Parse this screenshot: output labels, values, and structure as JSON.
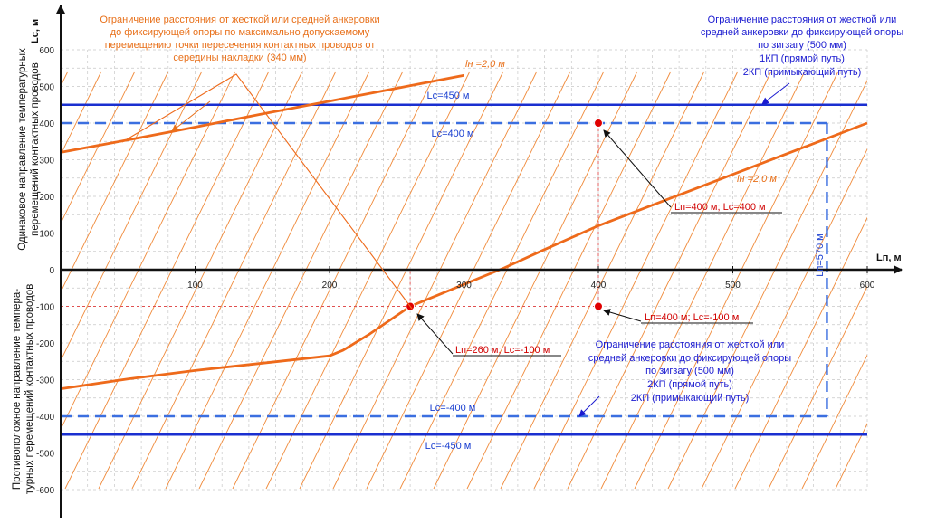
{
  "chart_data": {
    "type": "line",
    "title": "",
    "xlabel": "Lп, м",
    "ylabel": "Lс, м",
    "xlim": [
      0,
      600
    ],
    "ylim": [
      -600,
      600
    ],
    "x_ticks": [
      0,
      100,
      200,
      300,
      400,
      500,
      600
    ],
    "y_ticks": [
      -600,
      -500,
      -400,
      -300,
      -200,
      -100,
      0,
      100,
      200,
      300,
      400,
      500,
      600
    ],
    "x_tick_labels": [
      "0",
      "100",
      "200",
      "300",
      "400",
      "500",
      "600"
    ],
    "y_tick_labels": [
      "-600",
      "-500",
      "-400",
      "-300",
      "-200",
      "-100",
      "0",
      "100",
      "200",
      "300",
      "400",
      "500",
      "600"
    ],
    "grid": true,
    "side_titles": {
      "upper": [
        "Одинаковое направление температурных",
        "перемещений контактных проводов"
      ],
      "lower": [
        "Противоположное направление темпера-",
        "турных перемещений контактных проводов"
      ]
    },
    "series": [
      {
        "name": "lh = 2,0 м",
        "label_text": "lн =2,0 м",
        "color": "#ee6a1b",
        "x": [
          0,
          50,
          100,
          150,
          200,
          250,
          300
        ],
        "y": [
          320,
          354,
          389,
          425,
          460,
          495,
          530
        ]
      },
      {
        "name": "lh = 2,0 м (lower)",
        "label_text": "lн =2,0 м",
        "color": "#ee6a1b",
        "x": [
          0,
          50,
          100,
          150,
          200,
          210,
          230,
          260,
          280,
          300,
          330,
          360,
          400,
          450,
          500,
          550,
          600
        ],
        "y": [
          -325,
          -298,
          -275,
          -255,
          -235,
          -220,
          -175,
          -100,
          -70,
          -40,
          5,
          55,
          120,
          190,
          260,
          330,
          400
        ]
      }
    ],
    "reference_lines": [
      {
        "label": "Lс=450 м",
        "y": 450,
        "style": "solid",
        "color": "#1a2fd0"
      },
      {
        "label": "Lс=-450 м",
        "y": -450,
        "style": "solid",
        "color": "#1a2fd0"
      },
      {
        "label": "Lс=400 м",
        "y": 400,
        "style": "dashed",
        "color": "#3b6fe0"
      },
      {
        "label": "Lс=-400 м",
        "y": -400,
        "style": "dashed",
        "color": "#3b6fe0"
      },
      {
        "label": "Lп=570 м",
        "x": 570,
        "style": "dashed",
        "color": "#3b6fe0"
      }
    ],
    "points": [
      {
        "label": "Lп=400 м; Lс=400 м",
        "x": 400,
        "y": 400,
        "color": "#e00000"
      },
      {
        "label": "Lп=400 м; Lс=-100 м",
        "x": 400,
        "y": -100,
        "color": "#e00000"
      },
      {
        "label": "Lп=260 м; Lс=-100 м",
        "x": 260,
        "y": -100,
        "color": "#e00000"
      }
    ],
    "annotations": [
      {
        "color": "#e8701a",
        "lines": [
          "Ограничение расстояния от жесткой или средней анкеровки",
          "до фиксирующей опоры по  максимально допускаемому",
          "перемещению точки пересечения контактных проводов от",
          "середины накладки (340 мм)"
        ]
      },
      {
        "color": "#1a1ad0",
        "lines": [
          "Ограничение расстояния от жесткой или",
          "средней анкеровки до фиксирующей опоры",
          "по зигзагу (500 мм)",
          "1КП (прямой путь)",
          "2КП (примыкающий путь)"
        ]
      },
      {
        "color": "#1a1ad0",
        "lines": [
          "Ограничение расстояния от жесткой или",
          "средней анкеровки до фиксирующей опоры",
          "по зигзагу (500 мм)",
          "2КП (прямой путь)",
          "2КП (примыкающий путь)"
        ]
      }
    ]
  },
  "colors": {
    "orange": "#ee6a1b",
    "blue_solid": "#1a2fd0",
    "blue_dashed": "#3b6fe0",
    "red": "#e00000",
    "grid": "#c8c8c8",
    "hatch": "#f08a3a"
  }
}
